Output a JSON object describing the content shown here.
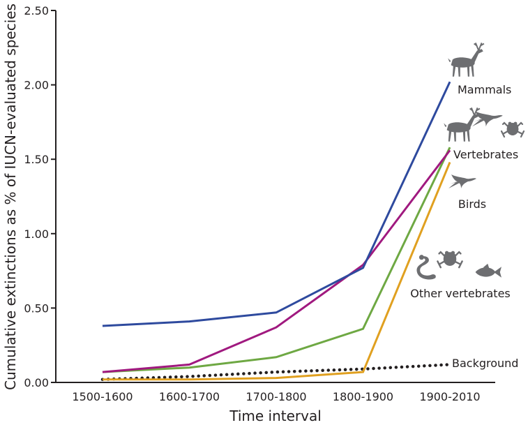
{
  "chart_data": {
    "type": "line",
    "xlabel": "Time interval",
    "ylabel": "Cumulative extinctions as % of IUCN-evaluated species",
    "categories": [
      "1500-1600",
      "1600-1700",
      "1700-1800",
      "1800-1900",
      "1900-2010"
    ],
    "ylim": [
      0,
      2.5
    ],
    "yticks": [
      "0.00",
      "0.50",
      "1.00",
      "1.50",
      "2.00",
      "2.50"
    ],
    "grid": false,
    "series": [
      {
        "name": "Mammals",
        "color": "#2e4a9e",
        "style": "solid",
        "values": [
          0.38,
          0.41,
          0.47,
          0.77,
          2.02
        ]
      },
      {
        "name": "Vertebrates",
        "color": "#a0197f",
        "style": "solid",
        "values": [
          0.07,
          0.12,
          0.37,
          0.79,
          1.56
        ]
      },
      {
        "name": "Birds",
        "color": "#6ea843",
        "style": "solid",
        "values": [
          0.07,
          0.1,
          0.17,
          0.36,
          1.58
        ]
      },
      {
        "name": "Other vertebrates",
        "color": "#e0a020",
        "style": "solid",
        "values": [
          0.02,
          0.02,
          0.03,
          0.07,
          1.48
        ]
      },
      {
        "name": "Background",
        "color": "#231f20",
        "style": "dotted",
        "values": [
          0.02,
          0.04,
          0.07,
          0.09,
          0.12
        ]
      }
    ],
    "icons": [
      "deer-icon",
      "swallow-icon",
      "frog-icon",
      "snake-icon",
      "fish-icon"
    ]
  }
}
